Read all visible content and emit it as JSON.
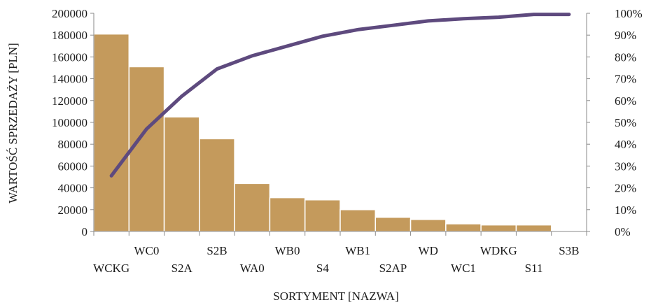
{
  "chart_data": {
    "type": "bar",
    "categories": [
      "WCKG",
      "WC0",
      "S2A",
      "S2B",
      "WA0",
      "WB0",
      "S4",
      "WB1",
      "S2AP",
      "WD",
      "WC1",
      "WDKG",
      "S11",
      "S3B"
    ],
    "series": [
      {
        "type": "bar",
        "axis": "left",
        "color": "#c49a5c",
        "values": [
          181000,
          151000,
          105000,
          85000,
          44000,
          31000,
          29000,
          20000,
          13000,
          11000,
          7000,
          6000,
          6000,
          0
        ]
      },
      {
        "type": "line",
        "axis": "right",
        "color": "#5e4a7e",
        "values": [
          25.5,
          47,
          62,
          74.5,
          80.5,
          85,
          89.5,
          92.5,
          94.5,
          96.5,
          97.5,
          98.2,
          99.5,
          99.5
        ]
      }
    ],
    "xlabel": "SORTYMENT [NAZWA]",
    "ylabel": "WARTOŚĆ SPRZEDAŻY [PLN]",
    "ylim": [
      0,
      200000
    ],
    "ylim_right": [
      0,
      100
    ],
    "y_ticks": [
      "0",
      "20000",
      "40000",
      "60000",
      "80000",
      "100000",
      "120000",
      "140000",
      "160000",
      "180000",
      "200000"
    ],
    "y_right_ticks": [
      "0%",
      "10%",
      "20%",
      "30%",
      "40%",
      "50%",
      "60%",
      "70%",
      "80%",
      "90%",
      "100%"
    ],
    "grid": false,
    "legend": "none"
  }
}
